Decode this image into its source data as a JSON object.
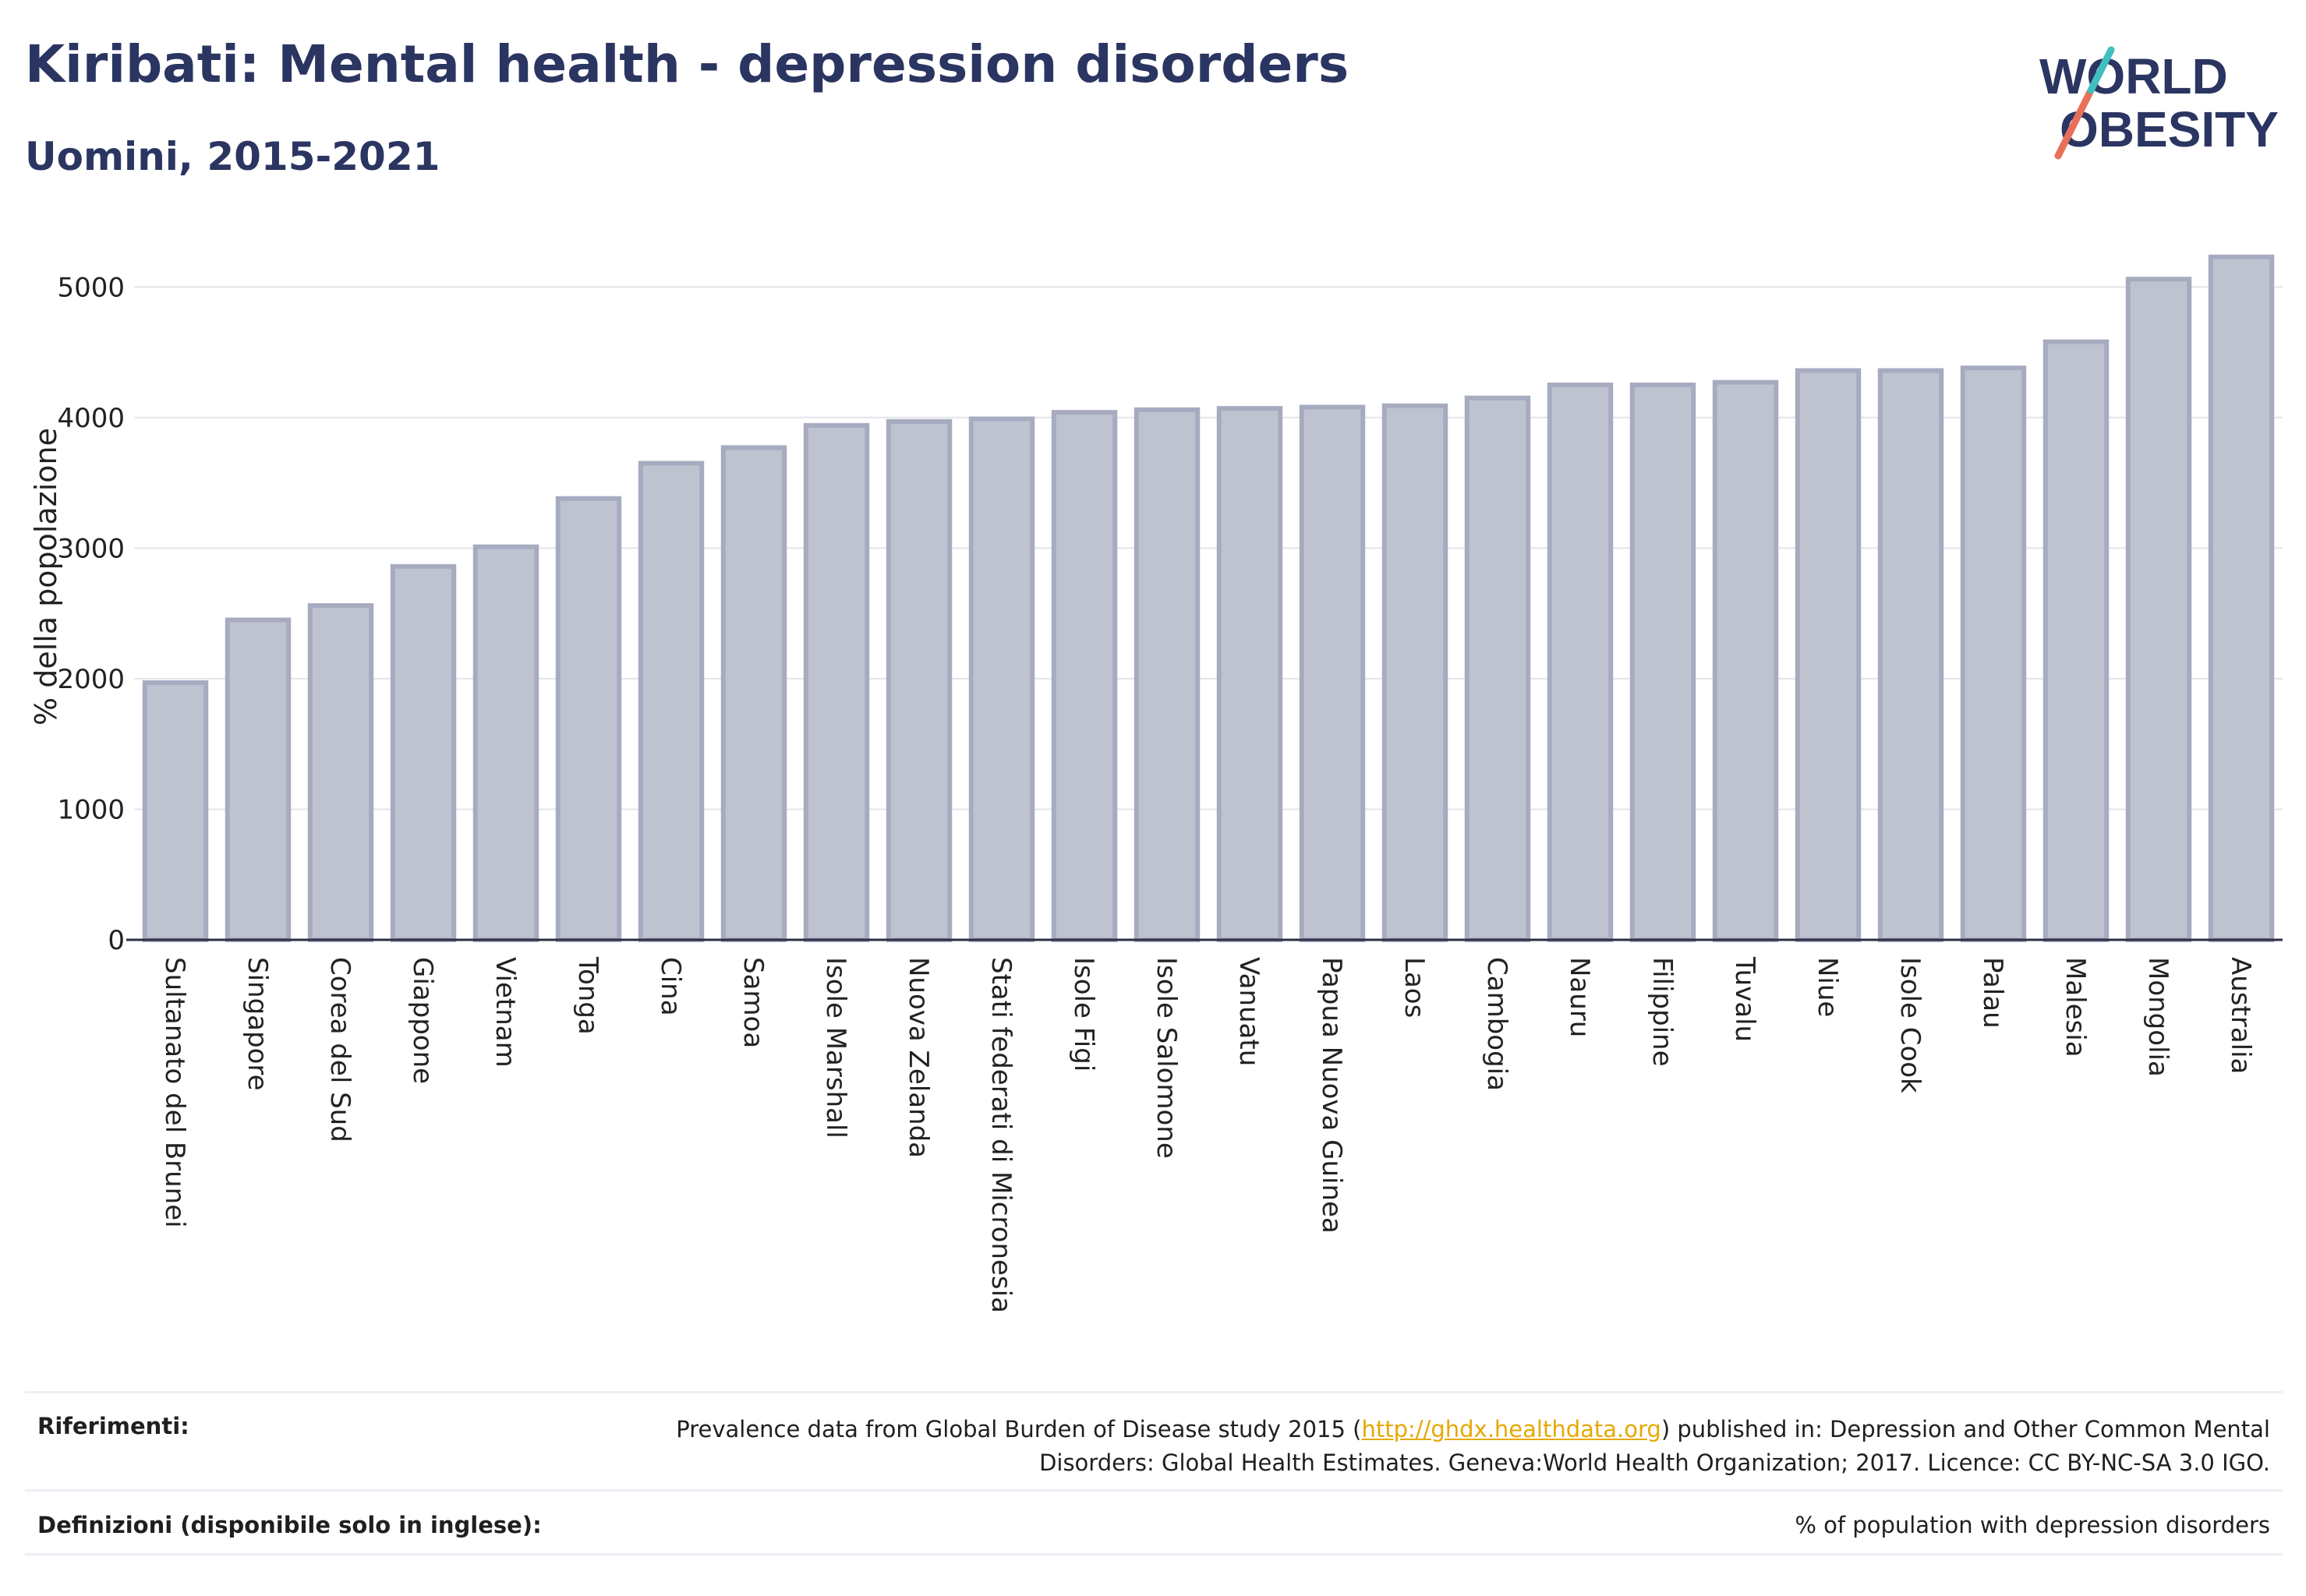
{
  "header": {
    "title": "Kiribati: Mental health - depression disorders",
    "subtitle": "Uomini, 2015-2021"
  },
  "logo": {
    "line1": "WORLD",
    "line2": "OBESITY",
    "accent_colors": [
      "#e8705a",
      "#3fbfbf"
    ]
  },
  "chart_data": {
    "type": "bar",
    "ylabel": "% della popolazione",
    "ylim": [
      0,
      5300
    ],
    "yticks": [
      0,
      1000,
      2000,
      3000,
      4000,
      5000
    ],
    "grid": true,
    "bar_color": "#bfc3d0",
    "bar_edge_color": "#a7abc0",
    "categories": [
      "Sultanato del Brunei",
      "Singapore",
      "Corea del Sud",
      "Giappone",
      "Vietnam",
      "Tonga",
      "Cina",
      "Samoa",
      "Isole Marshall",
      "Nuova Zelanda",
      "Stati federati di Micronesia",
      "Isole Figi",
      "Isole Salomone",
      "Vanuatu",
      "Papua Nuova Guinea",
      "Laos",
      "Cambogia",
      "Nauru",
      "Filippine",
      "Tuvalu",
      "Niue",
      "Isole Cook",
      "Palau",
      "Malesia",
      "Mongolia",
      "Australia"
    ],
    "values": [
      1970,
      2450,
      2560,
      2860,
      3010,
      3380,
      3650,
      3770,
      3940,
      3970,
      3990,
      4040,
      4060,
      4070,
      4080,
      4090,
      4150,
      4250,
      4250,
      4270,
      4360,
      4360,
      4380,
      4580,
      5060,
      5230
    ]
  },
  "footer": {
    "references_label": "Riferimenti:",
    "references_text_before": "Prevalence data from Global Burden of Disease study 2015 (",
    "references_link": "http://ghdx.healthdata.org",
    "references_text_after": ") published in: Depression and Other Common Mental Disorders: Global Health Estimates. Geneva:World Health Organization; 2017. Licence: CC BY-NC-SA 3.0 IGO.",
    "definitions_label": "Definizioni (disponibile solo in inglese):",
    "definitions_text": "% of population with depression disorders"
  }
}
